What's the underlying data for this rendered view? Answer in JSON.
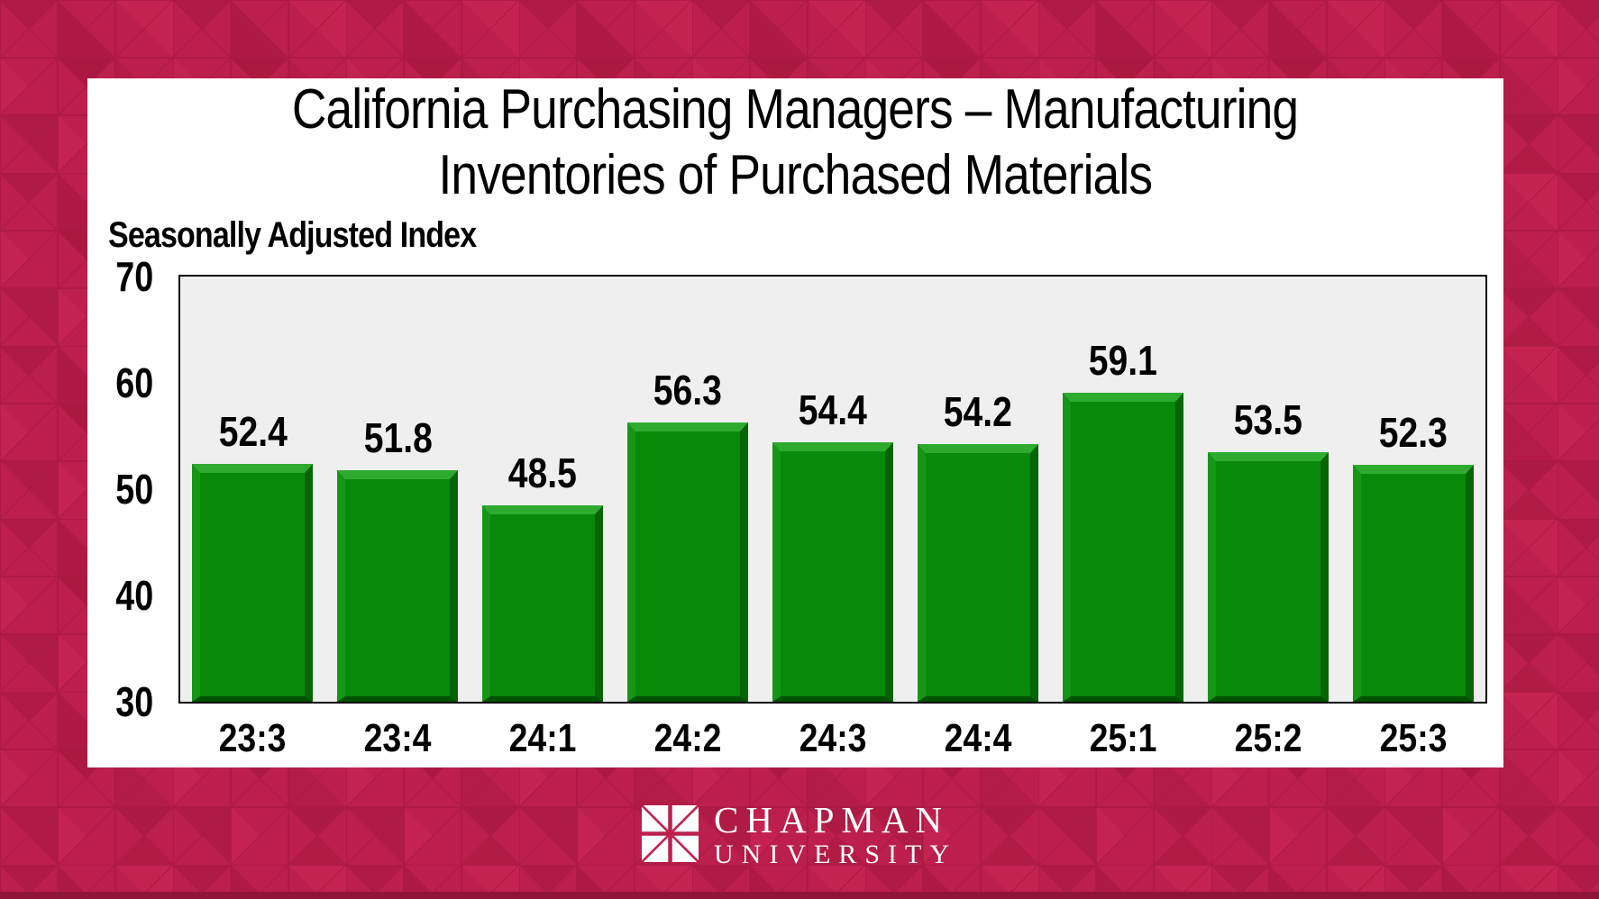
{
  "page": {
    "background_color": "#BC1F4C",
    "panel_color": "#FFFFFF",
    "bottom_strip_color": "#8F1537"
  },
  "header": {
    "title_line1": "California Purchasing Managers – Manufacturing",
    "title_line2": "Inventories of Purchased Materials"
  },
  "chart_data": {
    "type": "bar",
    "title": "California Purchasing Managers – Manufacturing Inventories of Purchased Materials",
    "axis_unit_label": "Seasonally Adjusted Index",
    "categories": [
      "23:3",
      "23:4",
      "24:1",
      "24:2",
      "24:3",
      "24:4",
      "25:1",
      "25:2",
      "25:3"
    ],
    "values": [
      52.4,
      51.8,
      48.5,
      56.3,
      54.4,
      54.2,
      59.1,
      53.5,
      52.3
    ],
    "y_ticks": [
      70,
      60,
      50,
      40,
      30
    ],
    "ylim": [
      30,
      70
    ],
    "xlabel": "",
    "ylabel": "Seasonally Adjusted Index",
    "grid": "off",
    "legend_position": "none",
    "data_labels": "above-bars",
    "bar_color": "#098909",
    "plot_background": "#F0EFEF"
  },
  "footer": {
    "logo_icon": "chapman-window-logo",
    "logo_line1": "CHAPMAN",
    "logo_line2": "UNIVERSITY"
  }
}
